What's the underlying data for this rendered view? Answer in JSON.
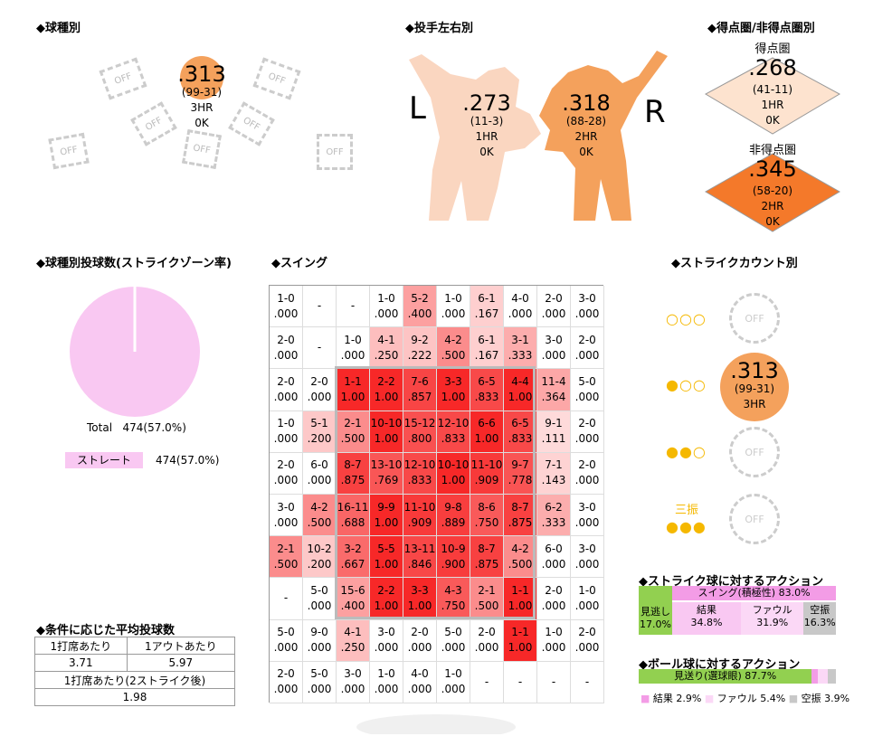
{
  "titles": {
    "pitch_type": "◆球種別",
    "hand": "◆投手左右別",
    "scoring": "◆得点圏/非得点圏別",
    "pitch_count": "◆球種別投球数(ストライクゾーン率)",
    "swing": "◆スイング",
    "strike_count": "◆ストライクカウント別",
    "avg_pitches": "◆条件に応じた平均投球数",
    "strike_action": "◆ストライク球に対するアクション",
    "ball_action": "◆ボール球に対するアクション"
  },
  "pitch_type": {
    "off_label": "OFF",
    "main": {
      "avg": ".313",
      "record": "(99-31)",
      "hr": "3HR",
      "k": "0K"
    }
  },
  "hand": {
    "left_label": "L",
    "right_label": "R",
    "left": {
      "avg": ".273",
      "record": "(11-3)",
      "hr": "1HR",
      "k": "0K"
    },
    "right": {
      "avg": ".318",
      "record": "(88-28)",
      "hr": "2HR",
      "k": "0K"
    },
    "colors": {
      "left": "#fad6c0",
      "right": "#f4a15c"
    }
  },
  "scoring": {
    "risp": {
      "label": "得点圏",
      "avg": ".268",
      "record": "(41-11)",
      "hr": "1HR",
      "k": "0K",
      "color": "#fde3cf"
    },
    "non_risp": {
      "label": "非得点圏",
      "avg": ".345",
      "record": "(58-20)",
      "hr": "2HR",
      "k": "0K",
      "color": "#f4792a"
    }
  },
  "pitch_count": {
    "total_label": "Total",
    "total_value": "474(57.0%)",
    "legend_label": "ストレート",
    "legend_value": "474(57.0%)",
    "color": "#f9c8f2"
  },
  "chart_data": {
    "type": "heatmap",
    "rows": [
      [
        [
          "1-0",
          ".000"
        ],
        [
          "-",
          ""
        ],
        [
          "-",
          ""
        ],
        [
          "1-0",
          ".000"
        ],
        [
          "5-2",
          ".400"
        ],
        [
          "1-0",
          ".000"
        ],
        [
          "6-1",
          ".167"
        ],
        [
          "4-0",
          ".000"
        ],
        [
          "2-0",
          ".000"
        ],
        [
          "3-0",
          ".000"
        ]
      ],
      [
        [
          "2-0",
          ".000"
        ],
        [
          "-",
          ""
        ],
        [
          "1-0",
          ".000"
        ],
        [
          "4-1",
          ".250"
        ],
        [
          "9-2",
          ".222"
        ],
        [
          "4-2",
          ".500"
        ],
        [
          "6-1",
          ".167"
        ],
        [
          "3-1",
          ".333"
        ],
        [
          "3-0",
          ".000"
        ],
        [
          "2-0",
          ".000"
        ]
      ],
      [
        [
          "2-0",
          ".000"
        ],
        [
          "2-0",
          ".000"
        ],
        [
          "1-1",
          "1.00"
        ],
        [
          "2-2",
          "1.00"
        ],
        [
          "7-6",
          ".857"
        ],
        [
          "3-3",
          "1.00"
        ],
        [
          "6-5",
          ".833"
        ],
        [
          "4-4",
          "1.00"
        ],
        [
          "11-4",
          ".364"
        ],
        [
          "5-0",
          ".000"
        ]
      ],
      [
        [
          "1-0",
          ".000"
        ],
        [
          "5-1",
          ".200"
        ],
        [
          "2-1",
          ".500"
        ],
        [
          "10-10",
          "1.00"
        ],
        [
          "15-12",
          ".800"
        ],
        [
          "12-10",
          ".833"
        ],
        [
          "6-6",
          "1.00"
        ],
        [
          "6-5",
          ".833"
        ],
        [
          "9-1",
          ".111"
        ],
        [
          "2-0",
          ".000"
        ]
      ],
      [
        [
          "2-0",
          ".000"
        ],
        [
          "6-0",
          ".000"
        ],
        [
          "8-7",
          ".875"
        ],
        [
          "13-10",
          ".769"
        ],
        [
          "12-10",
          ".833"
        ],
        [
          "10-10",
          "1.00"
        ],
        [
          "11-10",
          ".909"
        ],
        [
          "9-7",
          ".778"
        ],
        [
          "7-1",
          ".143"
        ],
        [
          "2-0",
          ".000"
        ]
      ],
      [
        [
          "3-0",
          ".000"
        ],
        [
          "4-2",
          ".500"
        ],
        [
          "16-11",
          ".688"
        ],
        [
          "9-9",
          "1.00"
        ],
        [
          "11-10",
          ".909"
        ],
        [
          "9-8",
          ".889"
        ],
        [
          "8-6",
          ".750"
        ],
        [
          "8-7",
          ".875"
        ],
        [
          "6-2",
          ".333"
        ],
        [
          "3-0",
          ".000"
        ]
      ],
      [
        [
          "2-1",
          ".500"
        ],
        [
          "10-2",
          ".200"
        ],
        [
          "3-2",
          ".667"
        ],
        [
          "5-5",
          "1.00"
        ],
        [
          "13-11",
          ".846"
        ],
        [
          "10-9",
          ".900"
        ],
        [
          "8-7",
          ".875"
        ],
        [
          "4-2",
          ".500"
        ],
        [
          "6-0",
          ".000"
        ],
        [
          "3-0",
          ".000"
        ]
      ],
      [
        [
          "-",
          ""
        ],
        [
          "5-0",
          ".000"
        ],
        [
          "15-6",
          ".400"
        ],
        [
          "2-2",
          "1.00"
        ],
        [
          "3-3",
          "1.00"
        ],
        [
          "4-3",
          ".750"
        ],
        [
          "2-1",
          ".500"
        ],
        [
          "1-1",
          "1.00"
        ],
        [
          "2-0",
          ".000"
        ],
        [
          "1-0",
          ".000"
        ]
      ],
      [
        [
          "5-0",
          ".000"
        ],
        [
          "9-0",
          ".000"
        ],
        [
          "4-1",
          ".250"
        ],
        [
          "3-0",
          ".000"
        ],
        [
          "2-0",
          ".000"
        ],
        [
          "5-0",
          ".000"
        ],
        [
          "2-0",
          ".000"
        ],
        [
          "1-1",
          "1.00"
        ],
        [
          "1-0",
          ".000"
        ],
        [
          "2-0",
          ".000"
        ]
      ],
      [
        [
          "2-0",
          ".000"
        ],
        [
          "5-0",
          ".000"
        ],
        [
          "3-0",
          ".000"
        ],
        [
          "1-0",
          ".000"
        ],
        [
          "4-0",
          ".000"
        ],
        [
          "1-0",
          ".000"
        ],
        [
          "-",
          ""
        ],
        [
          "-",
          ""
        ],
        [
          "-",
          ""
        ],
        [
          "-",
          ""
        ]
      ]
    ]
  },
  "strike_count": {
    "rows": [
      {
        "dots": "○○○",
        "off": "OFF"
      },
      {
        "dots": "●○○",
        "avg": ".313",
        "record": "(99-31)",
        "hr": "3HR"
      },
      {
        "dots": "●●○",
        "off": "OFF"
      },
      {
        "dots": "●●●",
        "label": "三振",
        "off": "OFF"
      }
    ]
  },
  "avg_pitches": {
    "h1": "1打席あたり",
    "h2": "1アウトあたり",
    "v1": "3.71",
    "v2": "5.97",
    "h3": "1打席あたり(2ストライク後)",
    "v3": "1.98"
  },
  "strike_action": {
    "look": {
      "label": "見逃し",
      "pct": "17.0%",
      "value": 17.0,
      "color": "#92d050"
    },
    "swing_label": "スイング(積極性) 83.0%",
    "hit": {
      "label": "結果",
      "pct": "34.8%",
      "value": 34.8,
      "color": "#f9c8f2"
    },
    "foul": {
      "label": "ファウル",
      "pct": "31.9%",
      "value": 31.9,
      "color": "#fbd8f6"
    },
    "miss": {
      "label": "空振",
      "pct": "16.3%",
      "value": 16.3,
      "color": "#c8c8c8"
    },
    "swing_color": "#f39ce6"
  },
  "ball_action": {
    "look": {
      "label": "見送り(選球眼) 87.7%",
      "value": 87.7,
      "color": "#92d050"
    },
    "hit": {
      "label": "結果",
      "pct": "2.9%",
      "value": 2.9,
      "color": "#f39ce6"
    },
    "foul": {
      "label": "ファウル",
      "pct": "5.4%",
      "value": 5.4,
      "color": "#fbd8f6"
    },
    "miss": {
      "label": "空振",
      "pct": "3.9%",
      "value": 3.9,
      "color": "#c8c8c8"
    }
  }
}
